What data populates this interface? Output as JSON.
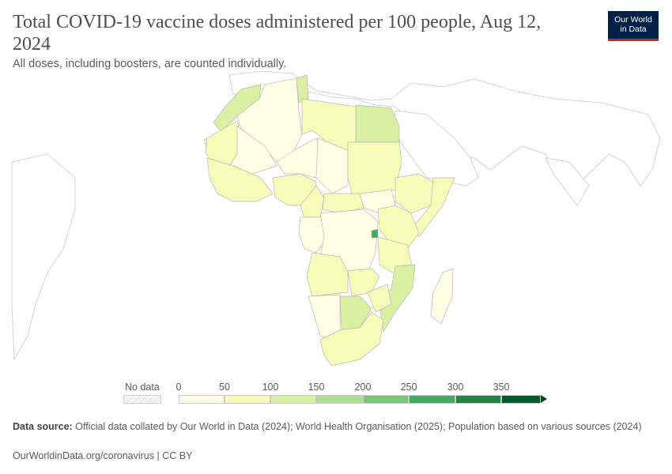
{
  "header": {
    "title": "Total COVID-19 vaccine doses administered per 100 people, Aug 12, 2024",
    "subtitle": "All doses, including boosters, are counted individually."
  },
  "logo": {
    "line1": "Our World",
    "line2": "in Data"
  },
  "legend": {
    "no_data_label": "No data",
    "ticks": [
      "0",
      "50",
      "100",
      "150",
      "200",
      "250",
      "300",
      "350"
    ],
    "colors": [
      "#ffffe5",
      "#f7fcb9",
      "#d9f0a3",
      "#addd8e",
      "#78c679",
      "#41ab5d",
      "#238443",
      "#005a32"
    ],
    "arrow_color": "#00441b"
  },
  "source": {
    "label": "Data source:",
    "text": "Official data collated by Our World in Data (2024); World Health Organisation (2025); Population based on various sources (2024)"
  },
  "footer": {
    "link": "OurWorldinData.org/coronavirus",
    "separator": " | ",
    "license": "CC BY"
  }
}
